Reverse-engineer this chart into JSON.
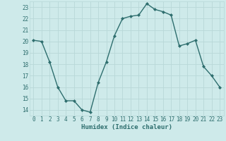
{
  "x": [
    0,
    1,
    2,
    3,
    4,
    5,
    6,
    7,
    8,
    9,
    10,
    11,
    12,
    13,
    14,
    15,
    16,
    17,
    18,
    19,
    20,
    21,
    22,
    23
  ],
  "y": [
    20.1,
    20.0,
    18.2,
    16.0,
    14.8,
    14.8,
    14.0,
    13.8,
    16.4,
    18.2,
    20.5,
    22.0,
    22.2,
    22.3,
    23.3,
    22.8,
    22.6,
    22.3,
    19.6,
    19.8,
    20.1,
    17.8,
    17.0,
    16.0
  ],
  "line_color": "#2e6e6e",
  "marker": "D",
  "marker_size": 2,
  "bg_color": "#ceeaea",
  "grid_color": "#b8d8d8",
  "xlabel": "Humidex (Indice chaleur)",
  "ylim": [
    13.5,
    23.5
  ],
  "xlim": [
    -0.5,
    23.5
  ],
  "yticks": [
    14,
    15,
    16,
    17,
    18,
    19,
    20,
    21,
    22,
    23
  ],
  "xticks": [
    0,
    1,
    2,
    3,
    4,
    5,
    6,
    7,
    8,
    9,
    10,
    11,
    12,
    13,
    14,
    15,
    16,
    17,
    18,
    19,
    20,
    21,
    22,
    23
  ],
  "tick_color": "#2e6e6e",
  "linewidth": 1.0,
  "tick_fontsize": 5.5,
  "xlabel_fontsize": 6.5
}
